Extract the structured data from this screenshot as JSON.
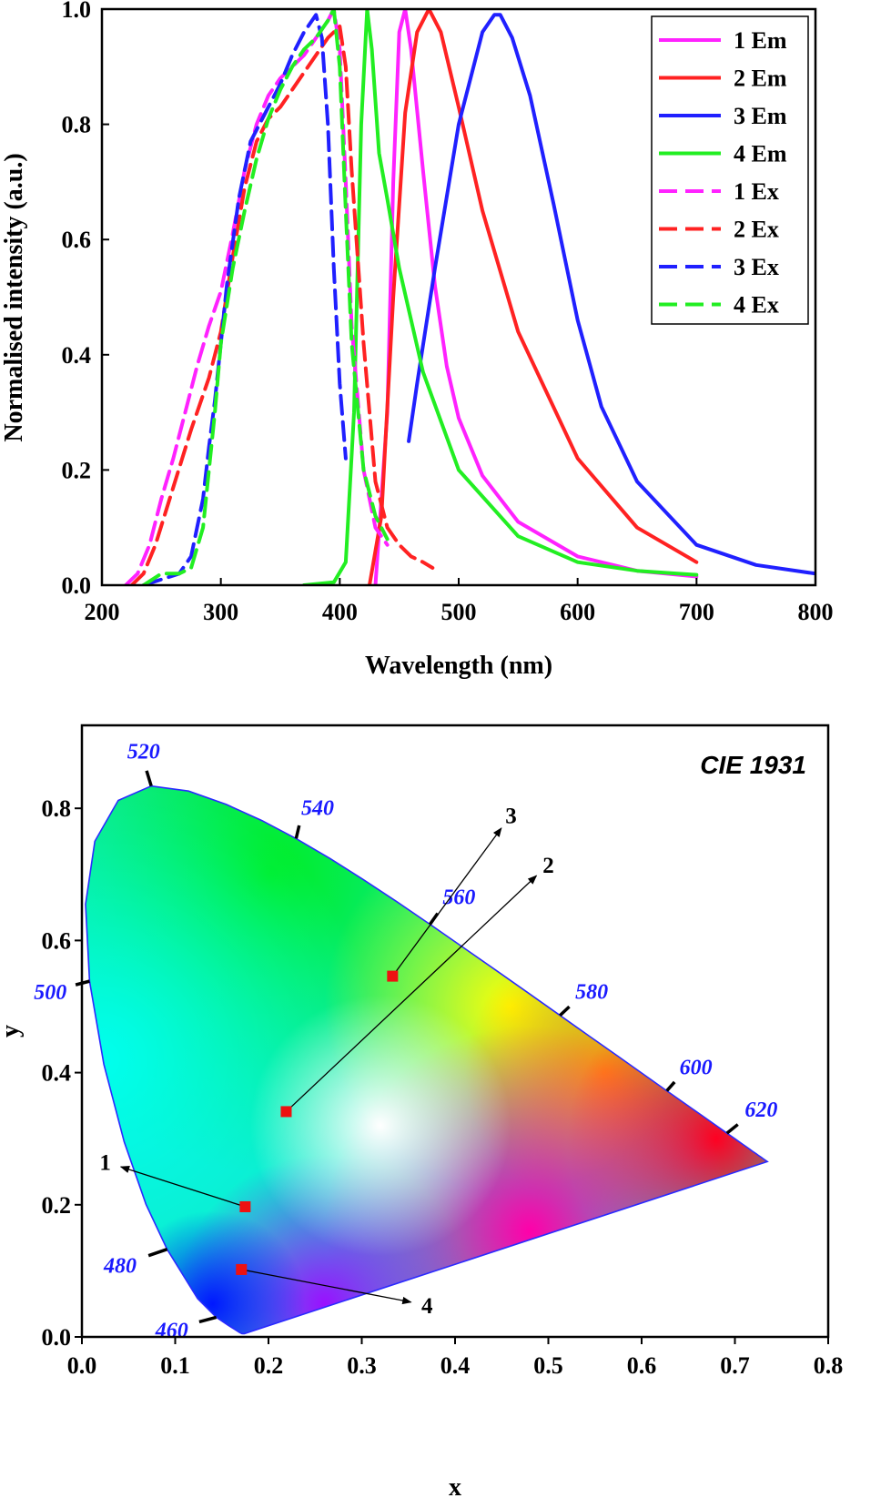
{
  "chart_data": [
    {
      "type": "line",
      "xlabel": "Wavelength (nm)",
      "ylabel": "Normalised intensity (a.u.)",
      "xlim": [
        200,
        800
      ],
      "ylim": [
        0,
        1.0
      ],
      "xticks": [
        "200",
        "300",
        "400",
        "500",
        "600",
        "700",
        "800"
      ],
      "yticks": [
        "0.0",
        "0.2",
        "0.4",
        "0.6",
        "0.8",
        "1.0"
      ],
      "grid": false,
      "legend_position": "top-right",
      "series": [
        {
          "name": "1 Em",
          "color": "#ff22ff",
          "style": "solid",
          "x": [
            430,
            440,
            445,
            450,
            455,
            460,
            470,
            480,
            490,
            500,
            520,
            550,
            600,
            650,
            700
          ],
          "y": [
            0.0,
            0.3,
            0.7,
            0.96,
            1.0,
            0.93,
            0.72,
            0.52,
            0.38,
            0.29,
            0.19,
            0.11,
            0.05,
            0.025,
            0.015
          ]
        },
        {
          "name": "2 Em",
          "color": "#ff2222",
          "style": "solid",
          "x": [
            425,
            435,
            445,
            455,
            465,
            475,
            485,
            500,
            520,
            550,
            600,
            650,
            700
          ],
          "y": [
            0.0,
            0.12,
            0.5,
            0.82,
            0.96,
            1.0,
            0.96,
            0.83,
            0.65,
            0.44,
            0.22,
            0.1,
            0.04
          ]
        },
        {
          "name": "3 Em",
          "color": "#2020ff",
          "style": "solid",
          "x": [
            458,
            465,
            480,
            500,
            520,
            530,
            535,
            545,
            560,
            580,
            600,
            620,
            650,
            700,
            750,
            800
          ],
          "y": [
            0.25,
            0.35,
            0.55,
            0.8,
            0.96,
            0.99,
            0.99,
            0.95,
            0.85,
            0.66,
            0.46,
            0.31,
            0.18,
            0.07,
            0.035,
            0.02
          ]
        },
        {
          "name": "4 Em",
          "color": "#22ee22",
          "style": "solid",
          "x": [
            370,
            395,
            405,
            412,
            418,
            423,
            427,
            433,
            440,
            450,
            470,
            500,
            550,
            600,
            650,
            700
          ],
          "y": [
            0.0,
            0.005,
            0.04,
            0.3,
            0.8,
            1.0,
            0.93,
            0.75,
            0.67,
            0.55,
            0.37,
            0.2,
            0.085,
            0.04,
            0.025,
            0.018
          ]
        },
        {
          "name": "1 Ex",
          "color": "#ff22ff",
          "style": "dashed",
          "x": [
            220,
            230,
            240,
            250,
            260,
            270,
            280,
            290,
            300,
            310,
            320,
            330,
            340,
            350,
            360,
            370,
            380,
            390,
            395,
            400,
            405,
            410,
            420,
            430,
            440
          ],
          "y": [
            0.0,
            0.02,
            0.07,
            0.15,
            0.22,
            0.3,
            0.38,
            0.45,
            0.51,
            0.61,
            0.72,
            0.8,
            0.85,
            0.88,
            0.9,
            0.92,
            0.95,
            0.98,
            1.0,
            0.93,
            0.7,
            0.45,
            0.2,
            0.1,
            0.07
          ]
        },
        {
          "name": "2 Ex",
          "color": "#ff2222",
          "style": "dashed",
          "x": [
            225,
            235,
            245,
            260,
            275,
            290,
            300,
            310,
            320,
            330,
            340,
            350,
            360,
            370,
            380,
            390,
            400,
            405,
            410,
            420,
            430,
            440,
            450,
            460,
            470,
            478
          ],
          "y": [
            0.0,
            0.02,
            0.07,
            0.17,
            0.27,
            0.36,
            0.44,
            0.57,
            0.69,
            0.77,
            0.81,
            0.83,
            0.86,
            0.89,
            0.92,
            0.95,
            0.97,
            0.9,
            0.72,
            0.42,
            0.18,
            0.1,
            0.07,
            0.05,
            0.04,
            0.03
          ]
        },
        {
          "name": "3 Ex",
          "color": "#2020ff",
          "style": "dashed",
          "x": [
            235,
            250,
            265,
            275,
            285,
            290,
            295,
            300,
            305,
            315,
            325,
            340,
            350,
            360,
            370,
            380,
            385,
            390,
            395,
            400,
            405
          ],
          "y": [
            0.0,
            0.01,
            0.02,
            0.05,
            0.15,
            0.24,
            0.32,
            0.42,
            0.52,
            0.67,
            0.77,
            0.83,
            0.87,
            0.92,
            0.96,
            0.99,
            0.95,
            0.8,
            0.55,
            0.35,
            0.22
          ]
        },
        {
          "name": "4 Ex",
          "color": "#22ee22",
          "style": "dashed",
          "x": [
            235,
            250,
            265,
            275,
            285,
            290,
            295,
            300,
            310,
            320,
            330,
            340,
            350,
            360,
            370,
            380,
            390,
            395,
            400,
            405,
            410,
            420,
            430,
            440
          ],
          "y": [
            0.0,
            0.02,
            0.02,
            0.03,
            0.1,
            0.2,
            0.3,
            0.42,
            0.55,
            0.65,
            0.74,
            0.81,
            0.86,
            0.9,
            0.93,
            0.95,
            0.98,
            1.0,
            0.9,
            0.65,
            0.42,
            0.2,
            0.12,
            0.08
          ]
        }
      ]
    },
    {
      "type": "scatter",
      "title": "CIE 1931",
      "xlabel": "x",
      "ylabel": "y",
      "xlim": [
        0.0,
        0.8
      ],
      "ylim": [
        0.0,
        0.9
      ],
      "xticks": [
        "0.0",
        "0.1",
        "0.2",
        "0.3",
        "0.4",
        "0.5",
        "0.6",
        "0.7",
        "0.8"
      ],
      "yticks": [
        "0.0",
        "0.2",
        "0.4",
        "0.6",
        "0.8"
      ],
      "grid": false,
      "wavelength_labels": [
        "460",
        "480",
        "500",
        "520",
        "540",
        "560",
        "580",
        "600",
        "620"
      ],
      "points": [
        {
          "label": "1",
          "x": 0.175,
          "y": 0.197
        },
        {
          "label": "2",
          "x": 0.219,
          "y": 0.341
        },
        {
          "label": "3",
          "x": 0.333,
          "y": 0.546
        },
        {
          "label": "4",
          "x": 0.171,
          "y": 0.102
        }
      ],
      "point_color": "#ee1111"
    }
  ]
}
